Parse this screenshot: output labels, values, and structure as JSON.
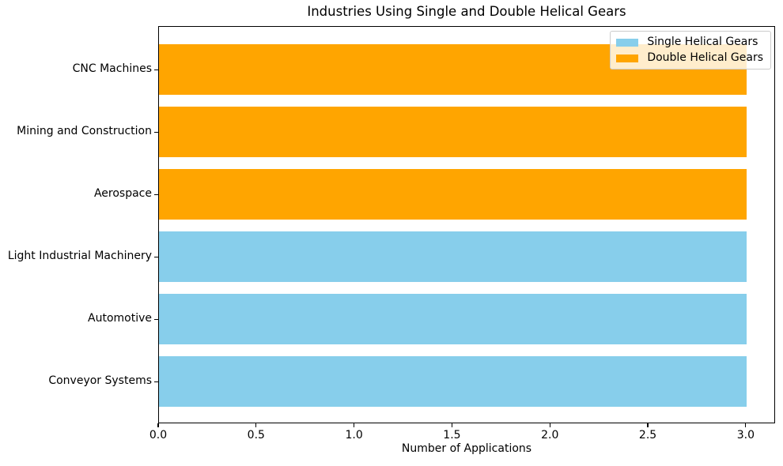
{
  "chart_data": {
    "type": "bar",
    "orientation": "horizontal",
    "title": "Industries Using Single and Double Helical Gears",
    "xlabel": "Number of Applications",
    "ylabel": "",
    "categories": [
      "CNC Machines",
      "Mining and Construction",
      "Aerospace",
      "Light Industrial Machinery",
      "Automotive",
      "Conveyor Systems"
    ],
    "bars": [
      {
        "category": "CNC Machines",
        "value": 3,
        "series": "Double Helical Gears",
        "color": "#FFA500"
      },
      {
        "category": "Mining and Construction",
        "value": 3,
        "series": "Double Helical Gears",
        "color": "#FFA500"
      },
      {
        "category": "Aerospace",
        "value": 3,
        "series": "Double Helical Gears",
        "color": "#FFA500"
      },
      {
        "category": "Light Industrial Machinery",
        "value": 3,
        "series": "Single Helical Gears",
        "color": "#87CEEB"
      },
      {
        "category": "Automotive",
        "value": 3,
        "series": "Single Helical Gears",
        "color": "#87CEEB"
      },
      {
        "category": "Conveyor Systems",
        "value": 3,
        "series": "Single Helical Gears",
        "color": "#87CEEB"
      }
    ],
    "series": [
      {
        "name": "Single Helical Gears",
        "color": "#87CEEB",
        "categories": [
          "Light Industrial Machinery",
          "Automotive",
          "Conveyor Systems"
        ],
        "values": [
          3,
          3,
          3
        ]
      },
      {
        "name": "Double Helical Gears",
        "color": "#FFA500",
        "categories": [
          "CNC Machines",
          "Mining and Construction",
          "Aerospace"
        ],
        "values": [
          3,
          3,
          3
        ]
      }
    ],
    "xlim": [
      0,
      3.15
    ],
    "xticks": [
      {
        "value": 0,
        "label": "0.0"
      },
      {
        "value": 0.5,
        "label": "0.5"
      },
      {
        "value": 1,
        "label": "1.0"
      },
      {
        "value": 1.5,
        "label": "1.5"
      },
      {
        "value": 2,
        "label": "2.0"
      },
      {
        "value": 2.5,
        "label": "2.5"
      },
      {
        "value": 3,
        "label": "3.0"
      }
    ],
    "grid": false,
    "legend": {
      "position": "upper right",
      "entries": [
        {
          "label": "Single Helical Gears",
          "color": "#87CEEB"
        },
        {
          "label": "Double Helical Gears",
          "color": "#FFA500"
        }
      ]
    },
    "colors": {
      "single_helical": "#87CEEB",
      "double_helical": "#FFA500",
      "text": "#000000",
      "spine": "#000000",
      "legend_border": "#cccccc"
    }
  }
}
